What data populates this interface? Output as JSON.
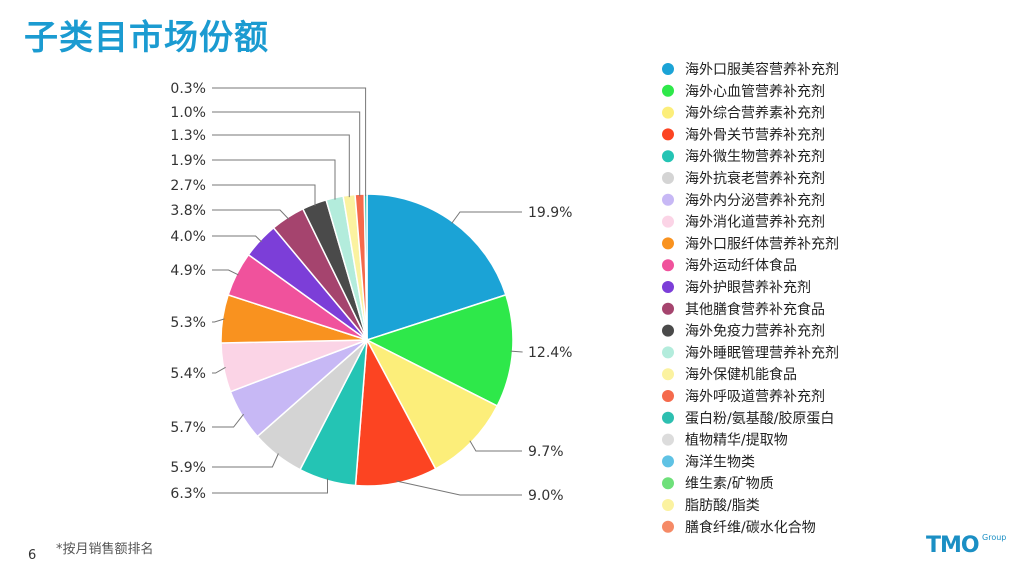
{
  "page": {
    "title": "子类目市场份额",
    "footnote": "*按月销售额排名",
    "page_number": "6",
    "logo_text": "TMO",
    "logo_sub": "Group"
  },
  "chart_data": {
    "type": "pie",
    "title": "",
    "legend_position": "right",
    "slices": [
      {
        "label": "海外口服美容营养补充剂",
        "value": 19.9,
        "display": "19.9%",
        "color": "#1ba3d6"
      },
      {
        "label": "海外心血管营养补充剂",
        "value": 12.4,
        "display": "12.4%",
        "color": "#2ee84a"
      },
      {
        "label": "海外综合营养素补充剂",
        "value": 9.7,
        "display": "9.7%",
        "color": "#fcee7a"
      },
      {
        "label": "海外骨关节营养补充剂",
        "value": 9.0,
        "display": "9.0%",
        "color": "#fc4422"
      },
      {
        "label": "海外微生物营养补充剂",
        "value": 6.3,
        "display": "6.3%",
        "color": "#24c4b4"
      },
      {
        "label": "海外抗衰老营养补充剂",
        "value": 5.9,
        "display": "5.9%",
        "color": "#d4d4d4"
      },
      {
        "label": "海外内分泌营养补充剂",
        "value": 5.7,
        "display": "5.7%",
        "color": "#c7b8f5"
      },
      {
        "label": "海外消化道营养补充剂",
        "value": 5.4,
        "display": "5.4%",
        "color": "#fbd4e6"
      },
      {
        "label": "海外口服纤体营养补充剂",
        "value": 5.3,
        "display": "5.3%",
        "color": "#f9921f"
      },
      {
        "label": "海外运动纤体食品",
        "value": 4.9,
        "display": "4.9%",
        "color": "#f0529c"
      },
      {
        "label": "海外护眼营养补充剂",
        "value": 4.0,
        "display": "4.0%",
        "color": "#7c3ed8"
      },
      {
        "label": "其他膳食营养补充食品",
        "value": 3.8,
        "display": "3.8%",
        "color": "#a5446e"
      },
      {
        "label": "海外免疫力营养补充剂",
        "value": 2.7,
        "display": "2.7%",
        "color": "#4a4a4a"
      },
      {
        "label": "海外睡眠管理营养补充剂",
        "value": 1.9,
        "display": "1.9%",
        "color": "#b3ecdc"
      },
      {
        "label": "海外保健机能食品",
        "value": 1.3,
        "display": "1.3%",
        "color": "#fbf2a0"
      },
      {
        "label": "海外呼吸道营养补充剂",
        "value": 1.0,
        "display": "1.0%",
        "color": "#f56a4c"
      },
      {
        "label": "蛋白粉/氨基酸/胶原蛋白",
        "value": 0.3,
        "display": "0.3%",
        "color": "#2dbfb0"
      },
      {
        "label": "植物精华/提取物",
        "value": 0.0,
        "display": "",
        "color": "#dcdcdc"
      },
      {
        "label": "海洋生物类",
        "value": 0.0,
        "display": "",
        "color": "#5fc2e4"
      },
      {
        "label": "维生素/矿物质",
        "value": 0.0,
        "display": "",
        "color": "#6ee07a"
      },
      {
        "label": "脂肪酸/脂类",
        "value": 0.0,
        "display": "",
        "color": "#fbf2a0"
      },
      {
        "label": "膳食纤维/碳水化合物",
        "value": 0.0,
        "display": "",
        "color": "#f58a66"
      }
    ]
  }
}
